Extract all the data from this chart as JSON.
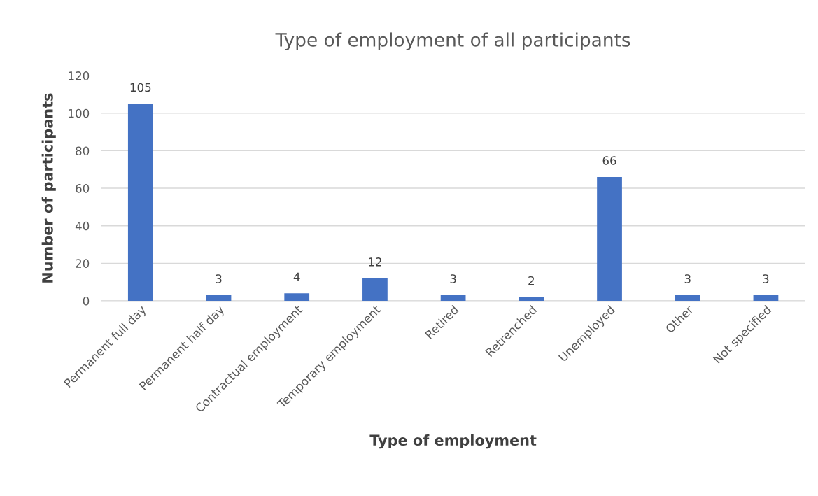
{
  "chart_data": {
    "type": "bar",
    "title": "Type of employment of all participants",
    "xlabel": "Type of employment",
    "ylabel": "Number of participants",
    "categories": [
      "Permanent full day",
      "Permanent half day",
      "Contractual employment",
      "Temporary employment",
      "Retired",
      "Retrenched",
      "Unemployed",
      "Other",
      "Not specified"
    ],
    "values": [
      105,
      3,
      4,
      12,
      3,
      2,
      66,
      3,
      3
    ],
    "color": "#4472c4",
    "ylim": [
      0,
      120
    ],
    "yticks": [
      0,
      20,
      40,
      60,
      80,
      100,
      120
    ],
    "grid": "y",
    "data_labels": true
  }
}
